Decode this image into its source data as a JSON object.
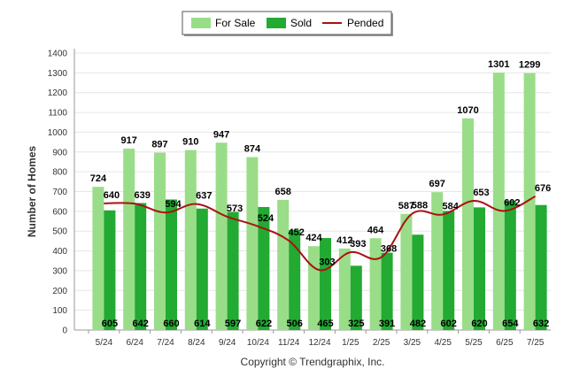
{
  "chart_data": {
    "type": "bar",
    "ylabel": "Number of Homes",
    "ylim": [
      0,
      1400
    ],
    "yticks": [
      0,
      100,
      200,
      300,
      400,
      500,
      600,
      700,
      800,
      900,
      1000,
      1100,
      1200,
      1300,
      1400
    ],
    "grid": true,
    "legend_position": "top-center",
    "categories": [
      "5/24",
      "6/24",
      "7/24",
      "8/24",
      "9/24",
      "10/24",
      "11/24",
      "12/24",
      "1/25",
      "2/25",
      "3/25",
      "4/25",
      "5/25",
      "6/25",
      "7/25"
    ],
    "series": [
      {
        "name": "For Sale",
        "type": "bar",
        "color": "#99dd88",
        "values": [
          724,
          917,
          897,
          910,
          947,
          874,
          658,
          424,
          412,
          464,
          587,
          697,
          1070,
          1301,
          1299
        ]
      },
      {
        "name": "Sold",
        "type": "bar",
        "color": "#22aa33",
        "values": [
          605,
          642,
          660,
          614,
          597,
          622,
          506,
          465,
          325,
          391,
          482,
          602,
          620,
          654,
          632
        ]
      },
      {
        "name": "Pended",
        "type": "line",
        "color": "#aa1111",
        "values": [
          640,
          639,
          594,
          637,
          573,
          524,
          452,
          303,
          393,
          368,
          588,
          584,
          653,
          602,
          676
        ]
      }
    ]
  },
  "footer": {
    "copyright": "Copyright © Trendgraphix, Inc."
  }
}
